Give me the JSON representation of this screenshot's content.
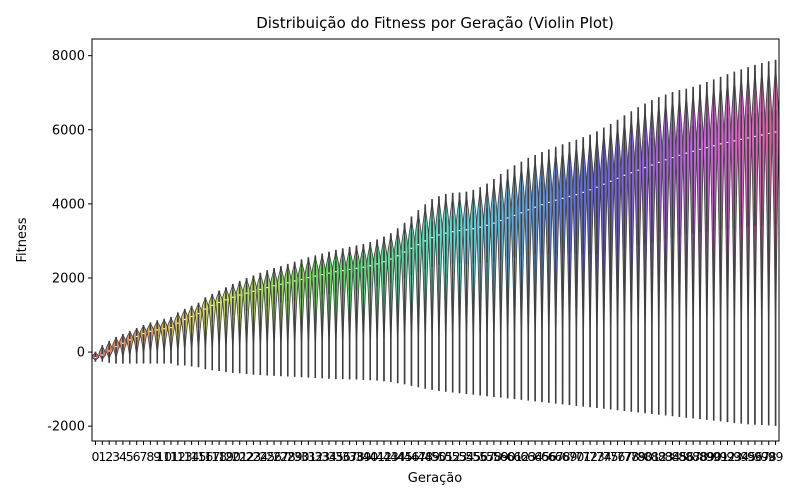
{
  "chart_data": {
    "type": "violin",
    "title": "Distribuição do Fitness por Geração (Violin Plot)",
    "xlabel": "Geração",
    "ylabel": "Fitness",
    "ylim": [
      -2400,
      8450
    ],
    "yticks": [
      -2000,
      0,
      2000,
      4000,
      6000,
      8000
    ],
    "generations": [
      0,
      1,
      2,
      3,
      4,
      5,
      6,
      7,
      8,
      9,
      10,
      11,
      12,
      13,
      14,
      15,
      16,
      17,
      18,
      19,
      20,
      21,
      22,
      23,
      24,
      25,
      26,
      27,
      28,
      29,
      30,
      31,
      32,
      33,
      34,
      35,
      36,
      37,
      38,
      39,
      40,
      41,
      42,
      43,
      44,
      45,
      46,
      47,
      48,
      49,
      50,
      51,
      52,
      53,
      54,
      55,
      56,
      57,
      58,
      59,
      60,
      61,
      62,
      63,
      64,
      65,
      66,
      67,
      68,
      69,
      70,
      71,
      72,
      73,
      74,
      75,
      76,
      77,
      78,
      79,
      80,
      81,
      82,
      83,
      84,
      85,
      86,
      87,
      88,
      89,
      90,
      91,
      92,
      93,
      94,
      95,
      96,
      97,
      98,
      99
    ],
    "tick_labels": [
      "0",
      "1",
      "2",
      "3",
      "4",
      "5",
      "6",
      "7",
      "8",
      "9",
      "10",
      "11",
      "12",
      "13",
      "14",
      "15",
      "16",
      "17",
      "18",
      "19",
      "20",
      "21",
      "22",
      "23",
      "24",
      "25",
      "26",
      "27",
      "28",
      "29",
      "30",
      "31",
      "32",
      "33",
      "34",
      "35",
      "36",
      "37",
      "38",
      "39",
      "40",
      "41",
      "42",
      "43",
      "44",
      "45",
      "46",
      "47",
      "48",
      "49",
      "50",
      "51",
      "52",
      "53",
      "54",
      "55",
      "56",
      "57",
      "58",
      "59",
      "60",
      "61",
      "62",
      "63",
      "64",
      "65",
      "66",
      "67",
      "68",
      "69",
      "70",
      "71",
      "72",
      "73",
      "74",
      "75",
      "76",
      "77",
      "78",
      "79",
      "80",
      "81",
      "82",
      "83",
      "84",
      "85",
      "86",
      "87",
      "88",
      "89",
      "90",
      "91",
      "92",
      "93",
      "94",
      "95",
      "96",
      "97",
      "98",
      "99"
    ],
    "max": [
      0,
      180,
      290,
      400,
      480,
      560,
      640,
      720,
      790,
      850,
      890,
      940,
      1060,
      1160,
      1240,
      1320,
      1470,
      1560,
      1650,
      1740,
      1830,
      1910,
      1990,
      2060,
      2130,
      2200,
      2260,
      2310,
      2370,
      2430,
      2490,
      2550,
      2600,
      2650,
      2700,
      2750,
      2790,
      2830,
      2870,
      2910,
      2960,
      3030,
      3110,
      3200,
      3330,
      3480,
      3650,
      3820,
      3980,
      4120,
      4200,
      4260,
      4290,
      4300,
      4320,
      4370,
      4440,
      4540,
      4660,
      4800,
      4920,
      5030,
      5130,
      5230,
      5310,
      5390,
      5460,
      5530,
      5600,
      5660,
      5720,
      5790,
      5860,
      5950,
      6050,
      6150,
      6260,
      6380,
      6490,
      6600,
      6700,
      6790,
      6870,
      6940,
      7010,
      7060,
      7100,
      7150,
      7210,
      7280,
      7350,
      7420,
      7490,
      7560,
      7620,
      7680,
      7740,
      7790,
      7840,
      7880
    ],
    "median": [
      -150,
      -80,
      30,
      150,
      240,
      330,
      420,
      500,
      560,
      600,
      630,
      660,
      780,
      880,
      960,
      1040,
      1160,
      1260,
      1340,
      1410,
      1480,
      1540,
      1590,
      1640,
      1690,
      1740,
      1790,
      1830,
      1870,
      1920,
      1960,
      2010,
      2050,
      2090,
      2130,
      2170,
      2200,
      2230,
      2260,
      2290,
      2330,
      2380,
      2440,
      2510,
      2600,
      2700,
      2800,
      2900,
      3000,
      3090,
      3160,
      3210,
      3250,
      3280,
      3300,
      3330,
      3370,
      3420,
      3480,
      3550,
      3620,
      3690,
      3760,
      3840,
      3910,
      3980,
      4040,
      4100,
      4150,
      4200,
      4250,
      4310,
      4380,
      4450,
      4530,
      4610,
      4690,
      4770,
      4840,
      4910,
      4980,
      5050,
      5120,
      5190,
      5250,
      5310,
      5370,
      5420,
      5470,
      5520,
      5570,
      5620,
      5660,
      5700,
      5740,
      5780,
      5820,
      5860,
      5900,
      5940
    ],
    "q1": [
      -200,
      -150,
      -100,
      0,
      80,
      150,
      230,
      300,
      360,
      420,
      440,
      460,
      500,
      560,
      600,
      650,
      740,
      820,
      880,
      940,
      1000,
      1060,
      1110,
      1160,
      1200,
      1250,
      1290,
      1330,
      1370,
      1400,
      1440,
      1470,
      1500,
      1530,
      1570,
      1600,
      1630,
      1660,
      1690,
      1710,
      1740,
      1780,
      1820,
      1870,
      1930,
      2000,
      2080,
      2160,
      2240,
      2310,
      2360,
      2390,
      2400,
      2400,
      2390,
      2390,
      2400,
      2410,
      2440,
      2480,
      2520,
      2560,
      2600,
      2630,
      2650,
      2660,
      2660,
      2660,
      2660,
      2660,
      2650,
      2640,
      2640,
      2650,
      2670,
      2700,
      2740,
      2780,
      2820,
      2870,
      2910,
      2960,
      3000,
      3050,
      3090,
      3130,
      3170,
      3200,
      3230,
      3260,
      3280,
      3300,
      3320,
      3340,
      3360,
      3380,
      3400,
      3420,
      3440,
      3460
    ],
    "q3": [
      -50,
      50,
      150,
      290,
      380,
      470,
      550,
      640,
      700,
      750,
      780,
      820,
      920,
      1020,
      1110,
      1190,
      1320,
      1420,
      1510,
      1590,
      1670,
      1740,
      1810,
      1870,
      1930,
      1990,
      2040,
      2090,
      2140,
      2190,
      2240,
      2290,
      2340,
      2380,
      2420,
      2460,
      2500,
      2540,
      2570,
      2600,
      2640,
      2700,
      2770,
      2850,
      2950,
      3070,
      3190,
      3310,
      3420,
      3520,
      3590,
      3640,
      3680,
      3710,
      3740,
      3780,
      3830,
      3900,
      3980,
      4070,
      4160,
      4250,
      4340,
      4430,
      4520,
      4600,
      4680,
      4760,
      4830,
      4900,
      4970,
      5040,
      5110,
      5180,
      5260,
      5340,
      5420,
      5500,
      5570,
      5640,
      5710,
      5780,
      5840,
      5900,
      5960,
      6010,
      6060,
      6110,
      6150,
      6190,
      6230,
      6270,
      6310,
      6350,
      6390,
      6420,
      6450,
      6480,
      6510,
      6540
    ],
    "min": [
      -250,
      -250,
      -280,
      -300,
      -300,
      -300,
      -300,
      -300,
      -300,
      -300,
      -300,
      -300,
      -350,
      -350,
      -380,
      -400,
      -450,
      -480,
      -500,
      -530,
      -550,
      -560,
      -580,
      -600,
      -610,
      -620,
      -630,
      -640,
      -650,
      -660,
      -670,
      -680,
      -690,
      -700,
      -710,
      -720,
      -720,
      -730,
      -730,
      -740,
      -750,
      -760,
      -780,
      -800,
      -830,
      -860,
      -900,
      -940,
      -980,
      -1010,
      -1040,
      -1060,
      -1080,
      -1100,
      -1120,
      -1140,
      -1160,
      -1180,
      -1200,
      -1220,
      -1240,
      -1260,
      -1280,
      -1300,
      -1320,
      -1340,
      -1360,
      -1380,
      -1400,
      -1420,
      -1440,
      -1460,
      -1480,
      -1500,
      -1520,
      -1540,
      -1560,
      -1580,
      -1600,
      -1620,
      -1640,
      -1660,
      -1680,
      -1700,
      -1720,
      -1740,
      -1760,
      -1780,
      -1800,
      -1820,
      -1840,
      -1860,
      -1880,
      -1900,
      -1920,
      -1940,
      -1950,
      -1960,
      -1970,
      -1980
    ]
  }
}
